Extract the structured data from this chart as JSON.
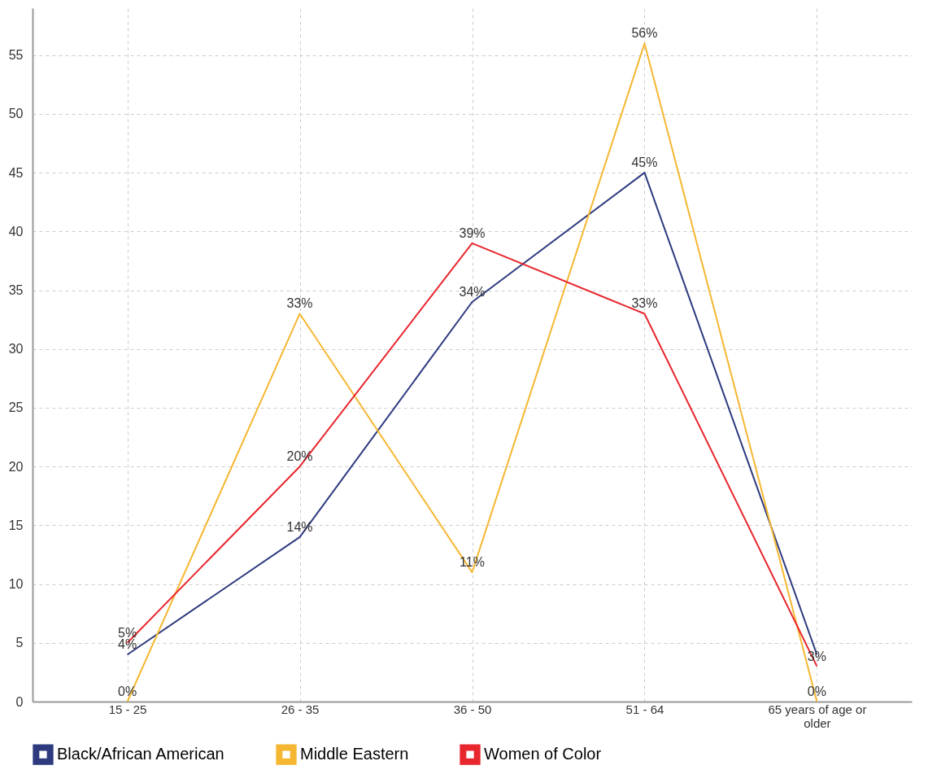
{
  "chart_data": {
    "type": "line",
    "categories": [
      "15 - 25",
      "26 - 35",
      "36 - 50",
      "51 - 64",
      "65 years of age or older"
    ],
    "series": [
      {
        "name": "Black/African American",
        "color": "#2e3a7e",
        "values": [
          4,
          14,
          34,
          45,
          4
        ],
        "value_labels": [
          "4%",
          "14%",
          "34%",
          "45%",
          null
        ]
      },
      {
        "name": "Middle Eastern",
        "color": "#f5b731",
        "values": [
          0,
          33,
          11,
          56,
          0
        ],
        "value_labels": [
          "0%",
          "33%",
          "11%",
          "56%",
          "0%"
        ]
      },
      {
        "name": "Women of Color",
        "color": "#e8262e",
        "values": [
          5,
          20,
          39,
          33,
          3
        ],
        "value_labels": [
          "5%",
          "20%",
          "39%",
          "33%",
          "3%"
        ]
      }
    ],
    "ylim": [
      0,
      59
    ],
    "yticks": [
      0,
      5,
      10,
      15,
      20,
      25,
      30,
      35,
      40,
      45,
      50,
      55
    ],
    "grid": true,
    "legend": "bottom",
    "marker": "none",
    "line_style": "solid"
  }
}
